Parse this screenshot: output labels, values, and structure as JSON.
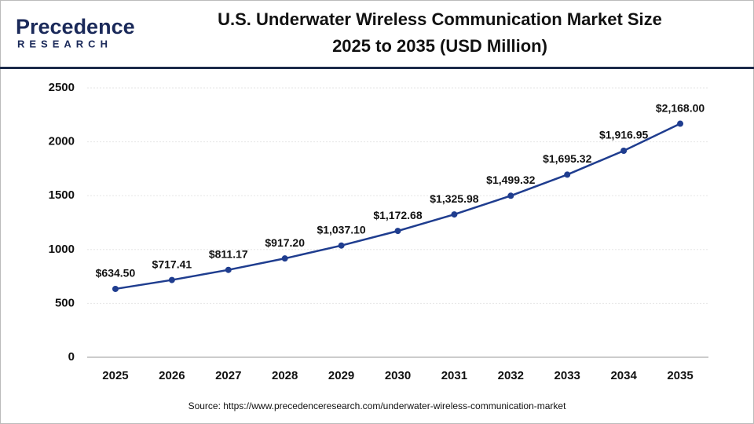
{
  "logo": {
    "name": "Precedence",
    "tagline": "RESEARCH"
  },
  "chart_data": {
    "type": "line",
    "title": [
      "U.S. Underwater Wireless Communication Market Size",
      "2025 to 2035 (USD Million)"
    ],
    "categories": [
      "2025",
      "2026",
      "2027",
      "2028",
      "2029",
      "2030",
      "2031",
      "2032",
      "2033",
      "2034",
      "2035"
    ],
    "series": [
      {
        "name": "U.S. Underwater Wireless Communication Market Size",
        "color": "#1f3d8f",
        "values": [
          634.5,
          717.41,
          811.17,
          917.2,
          1037.1,
          1172.68,
          1325.98,
          1499.32,
          1695.32,
          1916.95,
          2168.0
        ],
        "value_labels": [
          "$634.50",
          "$717.41",
          "$811.17",
          "$917.20",
          "$1,037.10",
          "$1,172.68",
          "$1,325.98",
          "$1,499.32",
          "$1,695.32",
          "$1,916.95",
          "$2,168.00"
        ]
      }
    ],
    "ylim": [
      0,
      2500
    ],
    "yticks": [
      0,
      500,
      1000,
      1500,
      2000,
      2500
    ],
    "grid": true,
    "source": "Source: https://www.precedenceresearch.com/underwater-wireless-communication-market"
  }
}
